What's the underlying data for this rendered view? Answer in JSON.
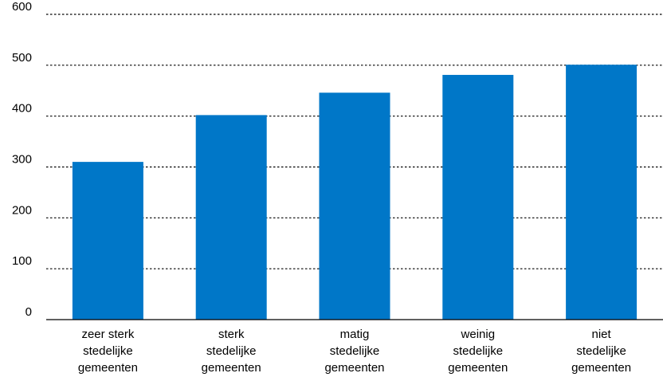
{
  "chart_data": {
    "type": "bar",
    "categories": [
      [
        "zeer sterk",
        "stedelijke",
        "gemeenten"
      ],
      [
        "sterk",
        "stedelijke",
        "gemeenten"
      ],
      [
        "matig",
        "stedelijke",
        "gemeenten"
      ],
      [
        "weinig",
        "stedelijke",
        "gemeenten"
      ],
      [
        "niet",
        "stedelijke",
        "gemeenten"
      ]
    ],
    "values": [
      310,
      402,
      446,
      481,
      501
    ],
    "ylim": [
      0,
      600
    ],
    "yticks": [
      0,
      100,
      200,
      300,
      400,
      500,
      600
    ],
    "grid": true,
    "grid_style": "dotted",
    "bar_color": "#0077c8",
    "title": "",
    "xlabel": "",
    "ylabel": ""
  }
}
